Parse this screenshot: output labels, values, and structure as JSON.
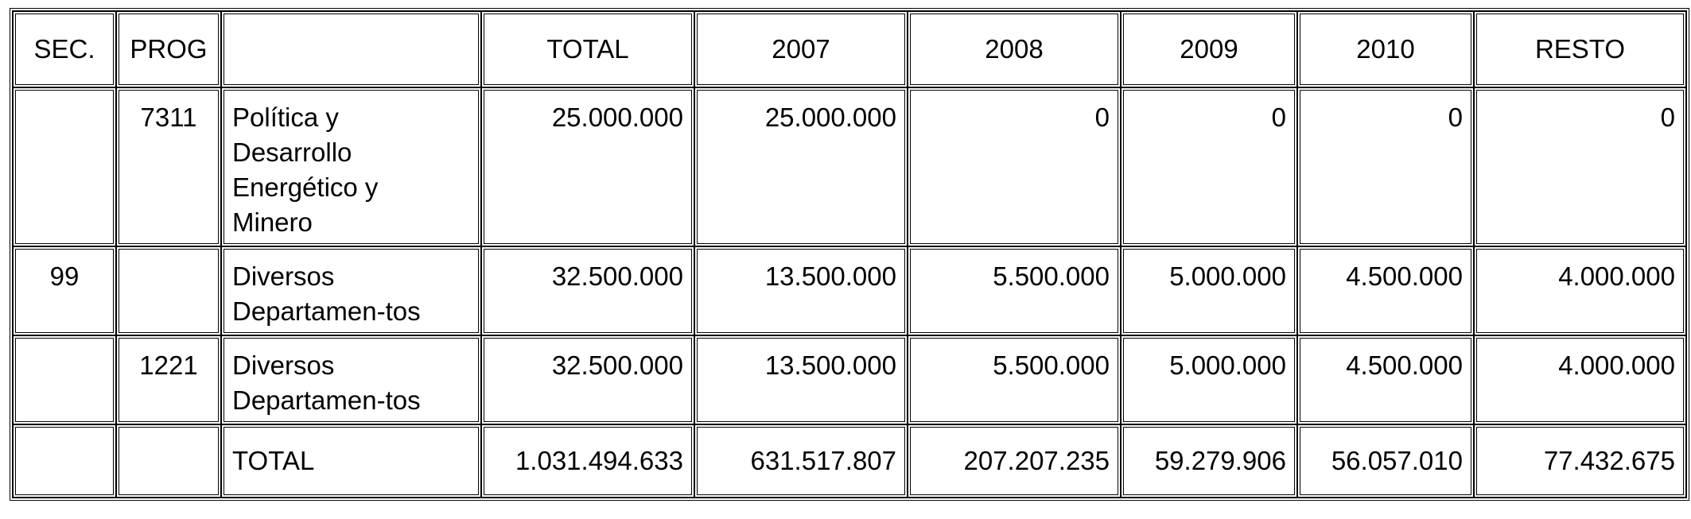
{
  "table": {
    "headers": [
      "SEC.",
      "PROG",
      "",
      "TOTAL",
      "2007",
      "2008",
      "2009",
      "2010",
      "RESTO"
    ],
    "rows": [
      {
        "sec": "",
        "prog": "7311",
        "desc": [
          "Política y",
          "Desarrollo",
          "Energético y",
          "Minero"
        ],
        "total": "25.000.000",
        "y2007": "25.000.000",
        "y2008": "0",
        "y2009": "0",
        "y2010": "0",
        "resto": "0"
      },
      {
        "sec": "99",
        "prog": "",
        "desc": [
          "Diversos",
          "Departamen-tos"
        ],
        "total": "32.500.000",
        "y2007": "13.500.000",
        "y2008": "5.500.000",
        "y2009": "5.000.000",
        "y2010": "4.500.000",
        "resto": "4.000.000"
      },
      {
        "sec": "",
        "prog": "1221",
        "desc": [
          "Diversos",
          "Departamen-tos"
        ],
        "total": "32.500.000",
        "y2007": "13.500.000",
        "y2008": "5.500.000",
        "y2009": "5.000.000",
        "y2010": "4.500.000",
        "resto": "4.000.000"
      }
    ],
    "total_row": {
      "sec": "",
      "prog": "",
      "label": "TOTAL",
      "total": "1.031.494.633",
      "y2007": "631.517.807",
      "y2008": "207.207.235",
      "y2009": "59.279.906",
      "y2010": "56.057.010",
      "resto": "77.432.675"
    }
  }
}
